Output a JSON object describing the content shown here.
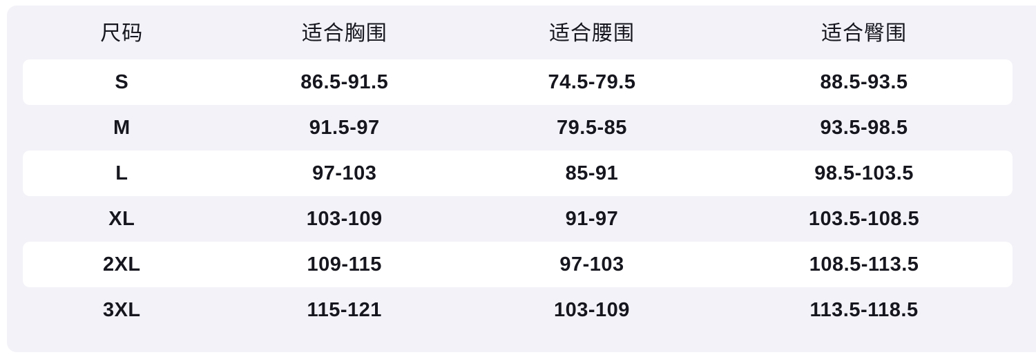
{
  "chart_data": {
    "type": "table",
    "columns": [
      "尺码",
      "适合胸围",
      "适合腰围",
      "适合臀围"
    ],
    "rows": [
      [
        "S",
        "86.5-91.5",
        "74.5-79.5",
        "88.5-93.5"
      ],
      [
        "M",
        "91.5-97",
        "79.5-85",
        "93.5-98.5"
      ],
      [
        "L",
        "97-103",
        "85-91",
        "98.5-103.5"
      ],
      [
        "XL",
        "103-109",
        "91-97",
        "103.5-108.5"
      ],
      [
        "2XL",
        "109-115",
        "97-103",
        "108.5-113.5"
      ],
      [
        "3XL",
        "115-121",
        "103-109",
        "113.5-118.5"
      ]
    ]
  },
  "colors": {
    "page_bg": "#ffffff",
    "panel_bg": "#f2f2f8",
    "stripe_bg": "#ffffff",
    "text_color": "#16161e"
  }
}
